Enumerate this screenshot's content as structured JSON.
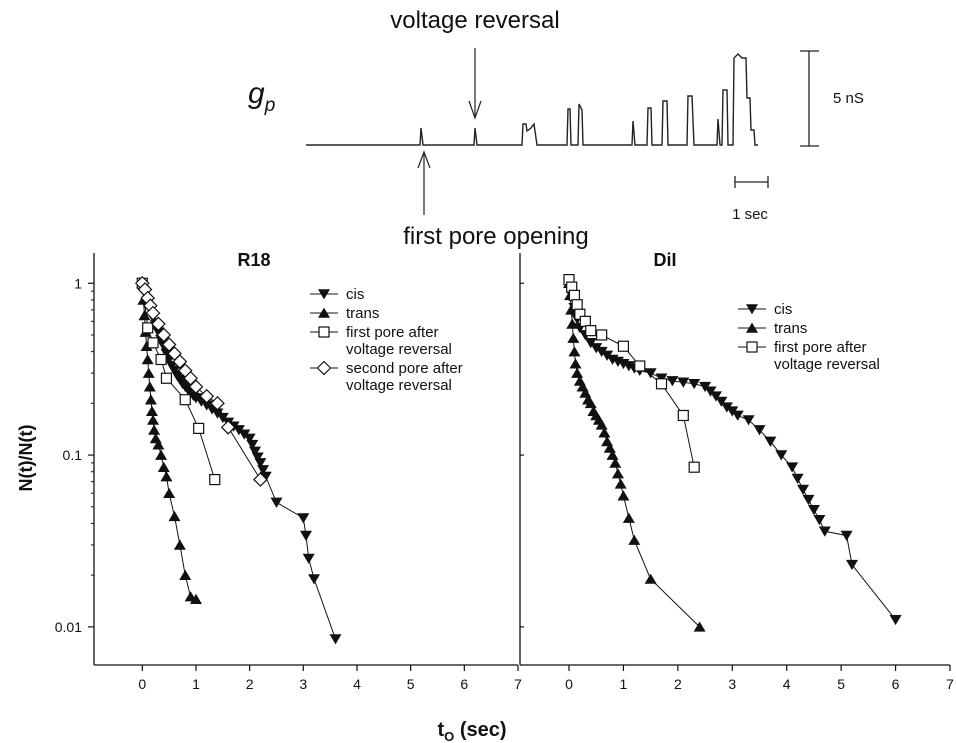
{
  "trace": {
    "label_main": "g",
    "label_sub": "p",
    "annot_reversal": "voltage reversal",
    "annot_first_pore": "first pore opening",
    "scale_conductance": "5 nS",
    "scale_time": "1 sec"
  },
  "shared": {
    "ylabel": "N(t)/N(t)",
    "xlabel_main": "t",
    "xlabel_sub": "O",
    "xlabel_unit": " (sec)",
    "yticks": [
      1,
      0.1,
      0.01
    ],
    "ytick_labels": [
      "1",
      "0.1",
      "0.01"
    ],
    "xticks": [
      0,
      1,
      2,
      3,
      4,
      5,
      6,
      7
    ],
    "xtick_labels": [
      "0",
      "1",
      "2",
      "3",
      "4",
      "5",
      "6",
      "7"
    ],
    "xlim": [
      -0.9,
      7
    ],
    "ylim": [
      0.006,
      1.5
    ],
    "y_scale": "log"
  },
  "chart_data": [
    {
      "type": "line",
      "title": "R18",
      "legend_position": "top-right",
      "series": [
        {
          "name": "cis",
          "marker": "triangle-down",
          "x": [
            0,
            0.05,
            0.1,
            0.15,
            0.2,
            0.25,
            0.3,
            0.35,
            0.4,
            0.45,
            0.5,
            0.55,
            0.6,
            0.65,
            0.7,
            0.75,
            0.8,
            0.85,
            0.9,
            0.95,
            1.0,
            1.1,
            1.2,
            1.3,
            1.4,
            1.5,
            1.6,
            1.7,
            1.8,
            1.9,
            2.0,
            2.05,
            2.1,
            2.15,
            2.2,
            2.25,
            2.3,
            2.5,
            3.0,
            3.05,
            3.1,
            3.2,
            3.6
          ],
          "y": [
            1.0,
            0.88,
            0.78,
            0.7,
            0.63,
            0.57,
            0.52,
            0.47,
            0.43,
            0.39,
            0.36,
            0.33,
            0.31,
            0.29,
            0.275,
            0.26,
            0.25,
            0.24,
            0.23,
            0.222,
            0.215,
            0.205,
            0.195,
            0.185,
            0.175,
            0.165,
            0.155,
            0.147,
            0.14,
            0.132,
            0.125,
            0.115,
            0.105,
            0.097,
            0.09,
            0.082,
            0.075,
            0.053,
            0.043,
            0.034,
            0.025,
            0.019,
            0.0085
          ]
        },
        {
          "name": "trans",
          "marker": "triangle-up",
          "x": [
            0,
            0.02,
            0.04,
            0.06,
            0.08,
            0.1,
            0.12,
            0.14,
            0.16,
            0.18,
            0.2,
            0.22,
            0.25,
            0.3,
            0.35,
            0.4,
            0.45,
            0.5,
            0.6,
            0.7,
            0.8,
            0.9,
            1.0
          ],
          "y": [
            1.0,
            0.8,
            0.65,
            0.52,
            0.43,
            0.36,
            0.3,
            0.25,
            0.21,
            0.18,
            0.16,
            0.14,
            0.125,
            0.115,
            0.1,
            0.085,
            0.075,
            0.06,
            0.044,
            0.03,
            0.02,
            0.015,
            0.0145
          ]
        },
        {
          "name": "first pore after voltage reversal",
          "marker": "square-open",
          "x": [
            0,
            0.1,
            0.2,
            0.35,
            0.45,
            0.8,
            1.05,
            1.35
          ],
          "y": [
            1.0,
            0.55,
            0.45,
            0.36,
            0.28,
            0.21,
            0.143,
            0.072
          ]
        },
        {
          "name": "second pore after voltage reversal",
          "marker": "diamond-open",
          "x": [
            0,
            0.05,
            0.1,
            0.15,
            0.2,
            0.3,
            0.4,
            0.5,
            0.6,
            0.7,
            0.8,
            0.9,
            1.0,
            1.2,
            1.4,
            1.6,
            2.2
          ],
          "y": [
            1.0,
            0.92,
            0.82,
            0.74,
            0.67,
            0.58,
            0.5,
            0.44,
            0.39,
            0.35,
            0.31,
            0.28,
            0.25,
            0.22,
            0.2,
            0.145,
            0.072
          ]
        }
      ]
    },
    {
      "type": "line",
      "title": "DiI",
      "legend_position": "top-right",
      "series": [
        {
          "name": "cis",
          "marker": "triangle-down",
          "x": [
            0,
            0.05,
            0.1,
            0.15,
            0.2,
            0.3,
            0.4,
            0.5,
            0.6,
            0.7,
            0.8,
            0.9,
            1.0,
            1.1,
            1.2,
            1.3,
            1.5,
            1.7,
            1.9,
            2.1,
            2.3,
            2.5,
            2.6,
            2.7,
            2.8,
            2.9,
            3.0,
            3.1,
            3.3,
            3.5,
            3.7,
            3.9,
            4.1,
            4.2,
            4.3,
            4.4,
            4.5,
            4.6,
            4.7,
            5.1,
            5.2,
            6.0
          ],
          "y": [
            1.0,
            0.85,
            0.72,
            0.62,
            0.55,
            0.5,
            0.45,
            0.42,
            0.4,
            0.38,
            0.36,
            0.35,
            0.34,
            0.33,
            0.32,
            0.31,
            0.3,
            0.28,
            0.27,
            0.265,
            0.26,
            0.25,
            0.235,
            0.22,
            0.205,
            0.19,
            0.18,
            0.17,
            0.16,
            0.14,
            0.12,
            0.1,
            0.085,
            0.073,
            0.063,
            0.055,
            0.048,
            0.042,
            0.036,
            0.034,
            0.023,
            0.011
          ]
        },
        {
          "name": "trans",
          "marker": "triangle-up",
          "x": [
            0,
            0.02,
            0.04,
            0.06,
            0.08,
            0.1,
            0.12,
            0.15,
            0.2,
            0.25,
            0.3,
            0.35,
            0.4,
            0.45,
            0.5,
            0.55,
            0.6,
            0.65,
            0.7,
            0.75,
            0.8,
            0.85,
            0.9,
            0.95,
            1.0,
            1.1,
            1.2,
            1.5,
            2.4
          ],
          "y": [
            1.0,
            0.85,
            0.7,
            0.58,
            0.48,
            0.4,
            0.34,
            0.3,
            0.27,
            0.25,
            0.23,
            0.21,
            0.2,
            0.18,
            0.17,
            0.16,
            0.15,
            0.135,
            0.12,
            0.11,
            0.1,
            0.09,
            0.078,
            0.068,
            0.058,
            0.043,
            0.032,
            0.019,
            0.01
          ]
        },
        {
          "name": "first pore after voltage reversal",
          "marker": "square-open",
          "x": [
            0,
            0.05,
            0.1,
            0.15,
            0.2,
            0.3,
            0.4,
            0.6,
            1.0,
            1.3,
            1.7,
            2.1,
            2.3
          ],
          "y": [
            1.05,
            0.95,
            0.85,
            0.75,
            0.66,
            0.6,
            0.53,
            0.5,
            0.43,
            0.33,
            0.26,
            0.17,
            0.085
          ]
        }
      ]
    }
  ]
}
